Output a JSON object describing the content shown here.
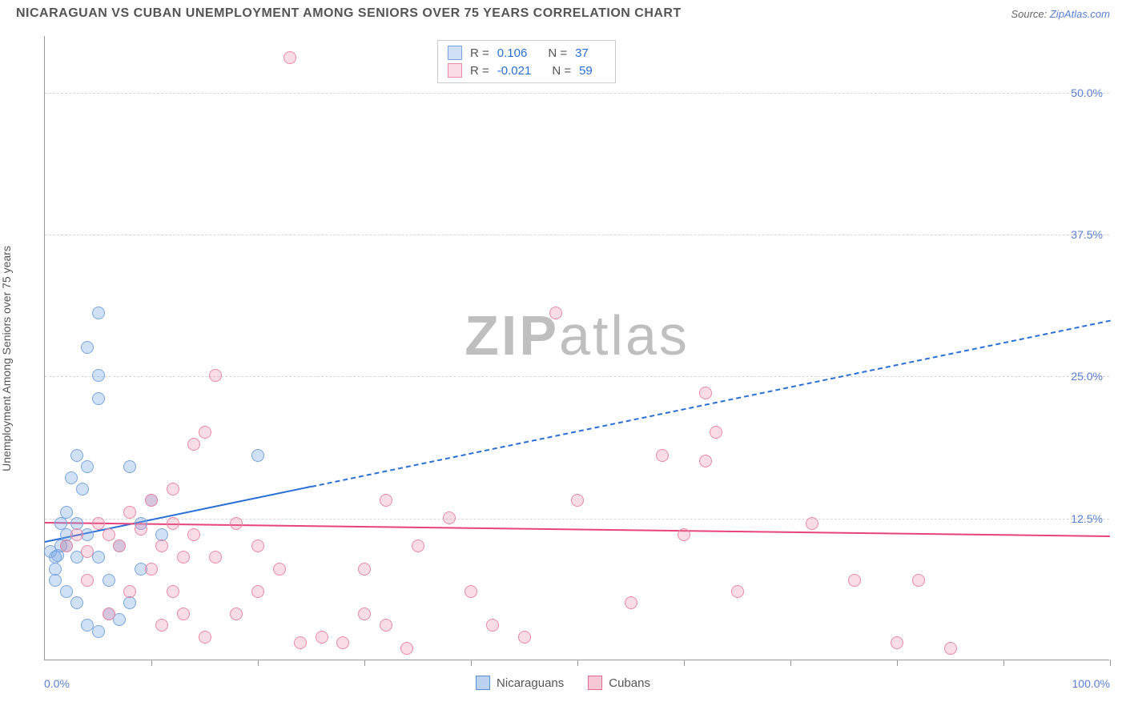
{
  "title": "NICARAGUAN VS CUBAN UNEMPLOYMENT AMONG SENIORS OVER 75 YEARS CORRELATION CHART",
  "source_prefix": "Source: ",
  "source_link": "ZipAtlas.com",
  "y_axis_label": "Unemployment Among Seniors over 75 years",
  "watermark_bold": "ZIP",
  "watermark_light": "atlas",
  "chart": {
    "type": "scatter",
    "xlim": [
      0,
      100
    ],
    "ylim": [
      0,
      55
    ],
    "x_origin_label": "0.0%",
    "x_max_label": "100.0%",
    "y_ticks": [
      {
        "v": 12.5,
        "label": "12.5%"
      },
      {
        "v": 25.0,
        "label": "25.0%"
      },
      {
        "v": 37.5,
        "label": "37.5%"
      },
      {
        "v": 50.0,
        "label": "50.0%"
      }
    ],
    "x_tick_positions": [
      10,
      20,
      30,
      40,
      50,
      60,
      70,
      80,
      90,
      100
    ],
    "background_color": "#ffffff",
    "grid_color": "#d8d8d8",
    "marker_radius": 8,
    "series": [
      {
        "name": "Nicaraguans",
        "fill": "rgba(120,165,225,0.35)",
        "stroke": "#7aa5e1",
        "R": "0.106",
        "N": "37",
        "regression": {
          "x1": 0,
          "y1": 10.5,
          "x2": 100,
          "y2": 30.0,
          "solid_until_x": 25,
          "color": "#2a6fd6",
          "width": 2.5
        },
        "points": [
          [
            1,
            9
          ],
          [
            1.5,
            10
          ],
          [
            2,
            11
          ],
          [
            1,
            8
          ],
          [
            2,
            13
          ],
          [
            3,
            12
          ],
          [
            0.5,
            9.5
          ],
          [
            1,
            7
          ],
          [
            2.5,
            16
          ],
          [
            3,
            18
          ],
          [
            4,
            17
          ],
          [
            3.5,
            15
          ],
          [
            5,
            25
          ],
          [
            4,
            27.5
          ],
          [
            5,
            23
          ],
          [
            5,
            30.5
          ],
          [
            1.5,
            12
          ],
          [
            2,
            10
          ],
          [
            3,
            9
          ],
          [
            4,
            11
          ],
          [
            5,
            9
          ],
          [
            6,
            4
          ],
          [
            4,
            3
          ],
          [
            5,
            2.5
          ],
          [
            7,
            3.5
          ],
          [
            8,
            5
          ],
          [
            9,
            8
          ],
          [
            10,
            14
          ],
          [
            11,
            11
          ],
          [
            8,
            17
          ],
          [
            3,
            5
          ],
          [
            2,
            6
          ],
          [
            6,
            7
          ],
          [
            7,
            10
          ],
          [
            9,
            12
          ],
          [
            20,
            18
          ],
          [
            1.2,
            9.2
          ]
        ]
      },
      {
        "name": "Cubans",
        "fill": "rgba(235,130,160,0.28)",
        "stroke": "#e88aa5",
        "R": "-0.021",
        "N": "59",
        "regression": {
          "x1": 0,
          "y1": 12.2,
          "x2": 100,
          "y2": 11.0,
          "solid_until_x": 100,
          "color": "#e6447b",
          "width": 2.5
        },
        "points": [
          [
            2,
            10
          ],
          [
            3,
            11
          ],
          [
            4,
            9.5
          ],
          [
            5,
            12
          ],
          [
            6,
            11
          ],
          [
            7,
            10
          ],
          [
            8,
            13
          ],
          [
            9,
            11.5
          ],
          [
            10,
            14
          ],
          [
            11,
            10
          ],
          [
            12,
            15
          ],
          [
            13,
            9
          ],
          [
            15,
            20
          ],
          [
            16,
            25
          ],
          [
            14,
            19
          ],
          [
            10,
            8
          ],
          [
            12,
            12
          ],
          [
            18,
            12
          ],
          [
            20,
            10
          ],
          [
            22,
            8
          ],
          [
            24,
            1.5
          ],
          [
            26,
            2
          ],
          [
            23,
            53
          ],
          [
            28,
            1.5
          ],
          [
            30,
            4
          ],
          [
            30,
            8
          ],
          [
            32,
            3
          ],
          [
            32,
            14
          ],
          [
            34,
            1
          ],
          [
            35,
            10
          ],
          [
            38,
            12.5
          ],
          [
            40,
            6
          ],
          [
            42,
            3
          ],
          [
            45,
            2
          ],
          [
            48,
            30.5
          ],
          [
            50,
            14
          ],
          [
            55,
            5
          ],
          [
            58,
            18
          ],
          [
            60,
            11
          ],
          [
            62,
            23.5
          ],
          [
            62,
            17.5
          ],
          [
            63,
            20
          ],
          [
            65,
            6
          ],
          [
            72,
            12
          ],
          [
            76,
            7
          ],
          [
            80,
            1.5
          ],
          [
            82,
            7
          ],
          [
            85,
            1
          ],
          [
            8,
            6
          ],
          [
            6,
            4
          ],
          [
            4,
            7
          ],
          [
            12,
            6
          ],
          [
            14,
            11
          ],
          [
            16,
            9
          ],
          [
            18,
            4
          ],
          [
            20,
            6
          ],
          [
            11,
            3
          ],
          [
            13,
            4
          ],
          [
            15,
            2
          ]
        ]
      }
    ]
  },
  "legend_items": [
    {
      "label": "Nicaraguans",
      "fill": "rgba(120,165,225,0.5)",
      "stroke": "#5a8fd6"
    },
    {
      "label": "Cubans",
      "fill": "rgba(235,130,160,0.45)",
      "stroke": "#e06a92"
    }
  ]
}
